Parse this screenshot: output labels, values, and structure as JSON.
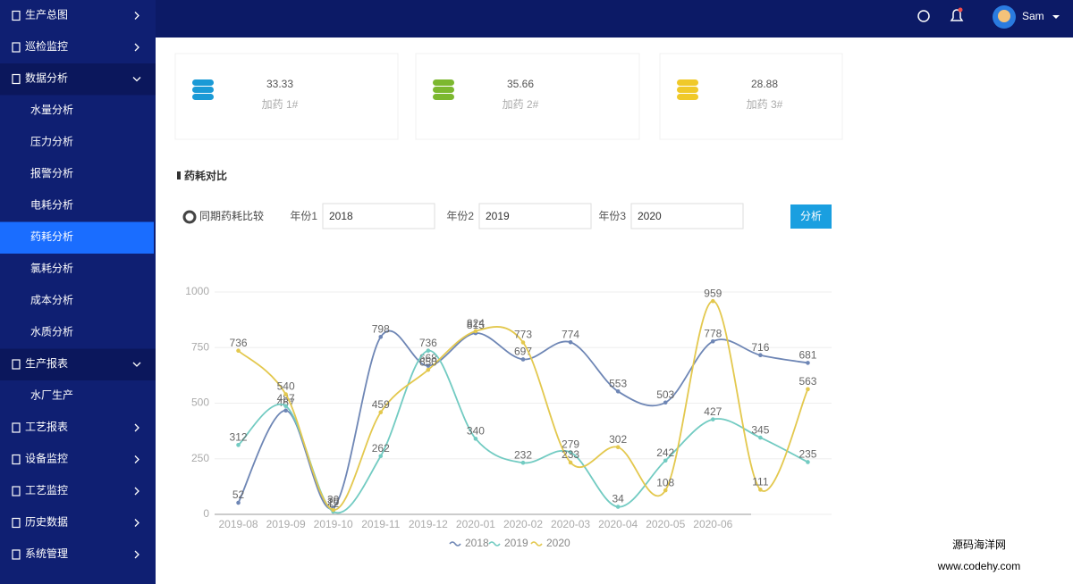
{
  "header": {
    "user": "Sam"
  },
  "sidebar": [
    {
      "label": "生产总图"
    },
    {
      "label": "巡检监控"
    },
    {
      "label": "数据分析",
      "children": [
        {
          "label": "水量分析"
        },
        {
          "label": "压力分析"
        },
        {
          "label": "报警分析"
        },
        {
          "label": "电耗分析"
        },
        {
          "label": "药耗分析",
          "active": true
        },
        {
          "label": "氯耗分析"
        },
        {
          "label": "成本分析"
        },
        {
          "label": "水质分析"
        }
      ]
    },
    {
      "label": "生产报表",
      "children": [
        {
          "label": "水厂生产"
        }
      ]
    },
    {
      "label": "工艺报表"
    },
    {
      "label": "设备监控"
    },
    {
      "label": "工艺监控"
    },
    {
      "label": "历史数据"
    },
    {
      "label": "系统管理"
    }
  ],
  "stats": [
    {
      "value": 33.33,
      "label": "加药 1#",
      "color": "#1a9ad6"
    },
    {
      "value": 35.66,
      "label": "加药 2#",
      "color": "#7cb82f"
    },
    {
      "value": 28.88,
      "label": "加药 3#",
      "color": "#f0c929"
    }
  ],
  "section_title": "药耗对比",
  "form": {
    "radio": "同期药耗比较",
    "fields": [
      {
        "label": "年份1",
        "value": "2018"
      },
      {
        "label": "年份2",
        "value": "2019"
      },
      {
        "label": "年份3",
        "value": "2020"
      }
    ],
    "button": "分析"
  },
  "watermark": {
    "line1": "源码海洋网",
    "line2": "www.codehy.com"
  },
  "chart_data": {
    "type": "line",
    "smooth": true,
    "categories": [
      "2019-08",
      "2019-09",
      "2019-10",
      "2019-11",
      "2019-12",
      "2020-01",
      "2020-02",
      "2020-03",
      "2020-04",
      "2020-05",
      "2020-06",
      null,
      null
    ],
    "series": [
      {
        "name": "2018",
        "color": "#6e86b5",
        "values": [
          52,
          467,
          30,
          798,
          668,
          815,
          697,
          774,
          553,
          503,
          778,
          716,
          681
        ]
      },
      {
        "name": "2019",
        "color": "#72cbc2",
        "values": [
          312,
          487,
          12,
          262,
          736,
          340,
          232,
          279,
          34,
          242,
          427,
          345,
          235
        ]
      },
      {
        "name": "2020",
        "color": "#e3c84e",
        "values": [
          736,
          540,
          20,
          459,
          650,
          824,
          773,
          233,
          302,
          108,
          959,
          111,
          563
        ]
      }
    ],
    "ylim": [
      0,
      1000
    ],
    "yticks": [
      0,
      250,
      500,
      750,
      1000
    ],
    "grid": true,
    "legend": "bottom"
  }
}
